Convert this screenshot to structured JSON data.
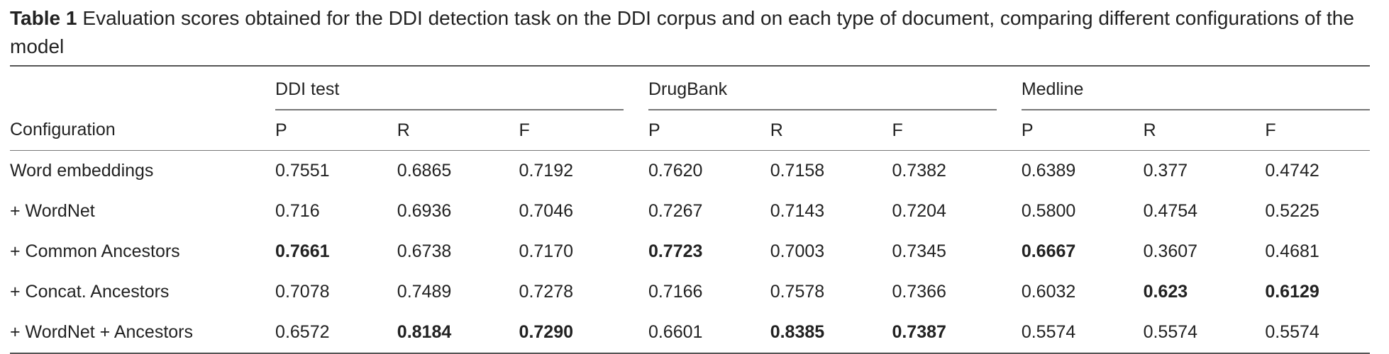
{
  "caption": {
    "label": "Table 1",
    "text": "Evaluation scores obtained for the DDI detection task on the DDI corpus and on each type of document, comparing different configurations of the model"
  },
  "table": {
    "row_header": "Configuration",
    "groups": [
      "DDI test",
      "DrugBank",
      "Medline"
    ],
    "metrics": [
      "P",
      "R",
      "F"
    ],
    "rows": [
      {
        "name": "Word embeddings",
        "values": [
          "0.7551",
          "0.6865",
          "0.7192",
          "0.7620",
          "0.7158",
          "0.7382",
          "0.6389",
          "0.377",
          "0.4742"
        ],
        "bold": [
          false,
          false,
          false,
          false,
          false,
          false,
          false,
          false,
          false
        ]
      },
      {
        "name": "+ WordNet",
        "values": [
          "0.716",
          "0.6936",
          "0.7046",
          "0.7267",
          "0.7143",
          "0.7204",
          "0.5800",
          "0.4754",
          "0.5225"
        ],
        "bold": [
          false,
          false,
          false,
          false,
          false,
          false,
          false,
          false,
          false
        ]
      },
      {
        "name": "+ Common Ancestors",
        "values": [
          "0.7661",
          "0.6738",
          "0.7170",
          "0.7723",
          "0.7003",
          "0.7345",
          "0.6667",
          "0.3607",
          "0.4681"
        ],
        "bold": [
          true,
          false,
          false,
          true,
          false,
          false,
          true,
          false,
          false
        ]
      },
      {
        "name": "+ Concat. Ancestors",
        "values": [
          "0.7078",
          "0.7489",
          "0.7278",
          "0.7166",
          "0.7578",
          "0.7366",
          "0.6032",
          "0.623",
          "0.6129"
        ],
        "bold": [
          false,
          false,
          false,
          false,
          false,
          false,
          false,
          true,
          true
        ]
      },
      {
        "name": "+ WordNet + Ancestors",
        "values": [
          "0.6572",
          "0.8184",
          "0.7290",
          "0.6601",
          "0.8385",
          "0.7387",
          "0.5574",
          "0.5574",
          "0.5574"
        ],
        "bold": [
          false,
          true,
          true,
          false,
          true,
          true,
          false,
          false,
          false
        ]
      }
    ]
  }
}
